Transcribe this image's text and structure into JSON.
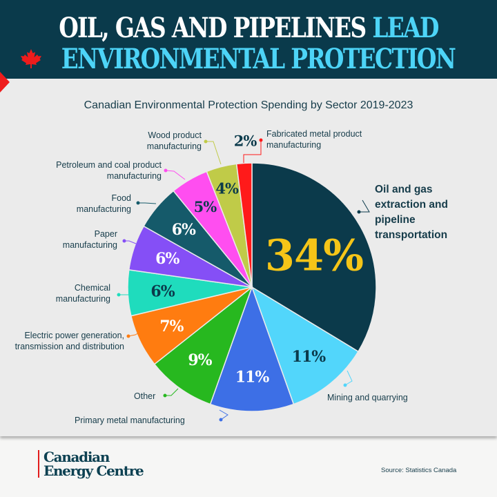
{
  "header": {
    "title_line1_white": "OIL, GAS AND PIPELINES",
    "title_line1_accent": "LEAD",
    "title_line2": "ENVIRONMENTAL PROTECTION",
    "icon": "maple-leaf-icon"
  },
  "chart_data": {
    "type": "pie",
    "title": "Canadian Environmental Protection Spending by Sector 2019-2023",
    "slices": [
      {
        "label": "Oil and gas extraction and pipeline transportation",
        "value": 34,
        "text": "34%",
        "color": "#0b3a4b"
      },
      {
        "label": "Mining and quarrying",
        "value": 11,
        "text": "11%",
        "color": "#52d6fb"
      },
      {
        "label": "Primary metal manufacturing",
        "value": 11,
        "text": "11%",
        "color": "#3d6fe6"
      },
      {
        "label": "Other",
        "value": 9,
        "text": "9%",
        "color": "#27b81f"
      },
      {
        "label": "Electric power generation, transmission and distribution",
        "value": 7,
        "text": "7%",
        "color": "#ff7c10"
      },
      {
        "label": "Chemical manufacturing",
        "value": 6,
        "text": "6%",
        "color": "#1fdcbd"
      },
      {
        "label": "Paper manufacturing",
        "value": 6,
        "text": "6%",
        "color": "#854ff6"
      },
      {
        "label": "Food manufacturing",
        "value": 6,
        "text": "6%",
        "color": "#155a6a"
      },
      {
        "label": "Petroleum and coal product manufacturing",
        "value": 5,
        "text": "5%",
        "color": "#ff4ef0"
      },
      {
        "label": "Wood product manufacturing",
        "value": 4,
        "text": "4%",
        "color": "#c0cb48"
      },
      {
        "label": "Fabricated metal product manufacturing",
        "value": 2,
        "text": "2%",
        "color": "#ff1a1a"
      }
    ]
  },
  "labels": {
    "oil": "Oil and gas extraction and pipeline transportation",
    "mining": "Mining and quarrying",
    "primary": "Primary metal manufacturing",
    "other": "Other",
    "electric": "Electric power generation, transmission and distribution",
    "chemical": "Chemical manufacturing",
    "paper": "Paper manufacturing",
    "food": "Food manufacturing",
    "petroleum": "Petroleum and coal product manufacturing",
    "wood": "Wood product manufacturing",
    "fabricated": "Fabricated metal product manufacturing"
  },
  "footer": {
    "logo_line1": "Canadian",
    "logo_line2": "Energy Centre",
    "source": "Source: Statistics Canada"
  }
}
